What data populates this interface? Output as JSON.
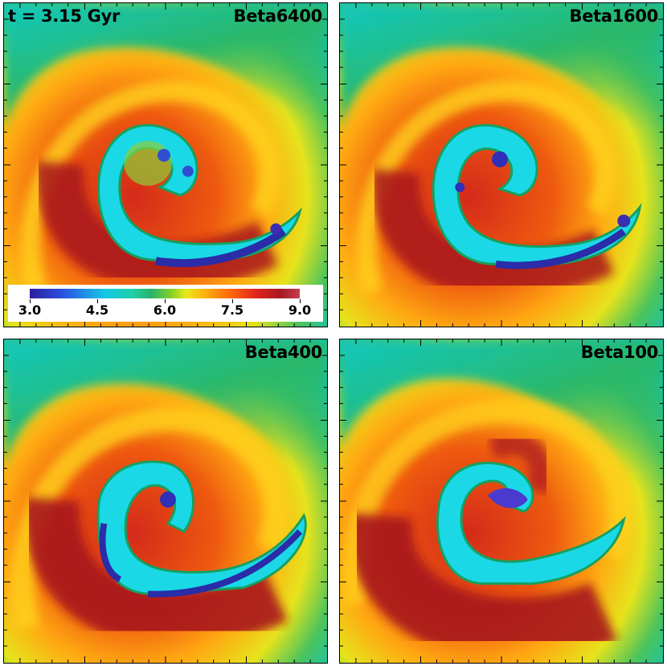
{
  "time_label": "t = 3.15 Gyr",
  "panels": [
    {
      "title": "Beta6400"
    },
    {
      "title": "Beta1600"
    },
    {
      "title": "Beta400"
    },
    {
      "title": "Beta100"
    }
  ],
  "colorbar": {
    "ticks": [
      "3.0",
      "4.5",
      "6.0",
      "7.5",
      "9.0"
    ],
    "range": [
      3.0,
      9.0
    ],
    "colors": [
      "#2a1f9e",
      "#16c8e6",
      "#27b46a",
      "#e8e81a",
      "#ff6a0a",
      "#a61824"
    ]
  }
}
